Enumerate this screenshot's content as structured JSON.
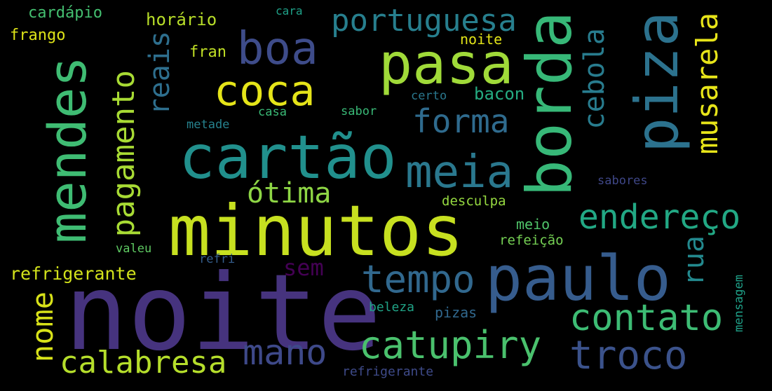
{
  "background_color": "#000000",
  "words": [
    {
      "text": "noite",
      "color": "#46337e"
    },
    {
      "text": "minutos",
      "color": "#c7e020"
    },
    {
      "text": "cartão",
      "color": "#21908d"
    },
    {
      "text": "paulo",
      "color": "#365c8d"
    },
    {
      "text": "borda",
      "color": "#37b878"
    },
    {
      "text": "pasa",
      "color": "#a0da39"
    },
    {
      "text": "mendes",
      "color": "#3fbc73"
    },
    {
      "text": "piza",
      "color": "#2c728e"
    },
    {
      "text": "catupiry",
      "color": "#4ac16d"
    },
    {
      "text": "boa",
      "color": "#3e4c8a"
    },
    {
      "text": "coca",
      "color": "#e5e419"
    },
    {
      "text": "meia",
      "color": "#2a788e"
    },
    {
      "text": "troco",
      "color": "#3b528b"
    },
    {
      "text": "contato",
      "color": "#3dbc74"
    },
    {
      "text": "endereço",
      "color": "#22a884"
    },
    {
      "text": "tempo",
      "color": "#31688e"
    },
    {
      "text": "calabresa",
      "color": "#b5de2b"
    },
    {
      "text": "mano",
      "color": "#3e4989"
    },
    {
      "text": "portuguesa",
      "color": "#277f8e"
    },
    {
      "text": "pagamento",
      "color": "#a8db34"
    },
    {
      "text": "musarela",
      "color": "#e7e419"
    },
    {
      "text": "forma",
      "color": "#2f6b8e"
    },
    {
      "text": "ótima",
      "color": "#8ed645"
    },
    {
      "text": "cebola",
      "color": "#287c8e"
    },
    {
      "text": "reais",
      "color": "#2e6f8e"
    },
    {
      "text": "nome",
      "color": "#d8e219"
    },
    {
      "text": "sem",
      "color": "#440154"
    },
    {
      "text": "rua",
      "color": "#23898e"
    },
    {
      "text": "refrigerante",
      "color": "#d2e21b"
    },
    {
      "text": "horário",
      "color": "#b8de29"
    },
    {
      "text": "bacon",
      "color": "#25ac82"
    },
    {
      "text": "frango",
      "color": "#dde318"
    },
    {
      "text": "cardápio",
      "color": "#44bf70"
    },
    {
      "text": "fran",
      "color": "#c0df25"
    },
    {
      "text": "noite",
      "color": "#e2e418"
    },
    {
      "text": "desculpa",
      "color": "#95d840"
    },
    {
      "text": "meio",
      "color": "#50c46a"
    },
    {
      "text": "refeição",
      "color": "#75d054"
    },
    {
      "text": "beleza",
      "color": "#20a386"
    },
    {
      "text": "pizas",
      "color": "#31688e"
    },
    {
      "text": "mensagem",
      "color": "#1fa088"
    },
    {
      "text": "valeu",
      "color": "#5ec962"
    },
    {
      "text": "metade",
      "color": "#26828e"
    },
    {
      "text": "casa",
      "color": "#3aba76"
    },
    {
      "text": "sabor",
      "color": "#39b977"
    },
    {
      "text": "certo",
      "color": "#2a788e"
    },
    {
      "text": "cara",
      "color": "#1fa188"
    },
    {
      "text": "sabores",
      "color": "#3f4788"
    },
    {
      "text": "refri",
      "color": "#355e8d"
    },
    {
      "text": "refrigerante",
      "color": "#3e4a89"
    }
  ]
}
